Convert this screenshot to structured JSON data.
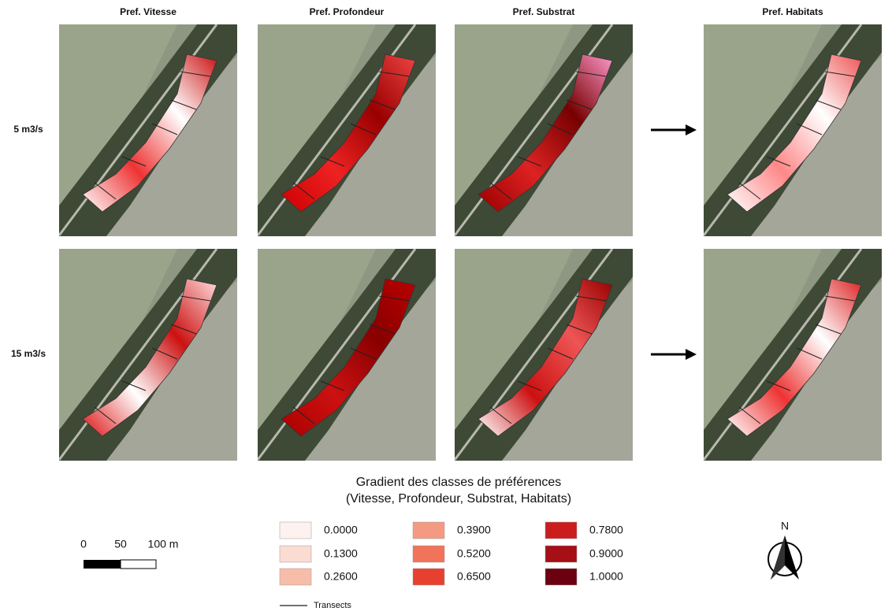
{
  "columns": [
    "Pref. Vitesse",
    "Pref. Profondeur",
    "Pref. Substrat",
    "Pref. Habitats"
  ],
  "rows": [
    "5 m3/s",
    "15 m3/s"
  ],
  "legend": {
    "title": [
      "Gradient des classes de préférences",
      "(Vitesse, Profondeur, Substrat, Habitats)"
    ],
    "items": [
      {
        "label": "0.0000",
        "color": "#fdf2ef"
      },
      {
        "label": "0.1300",
        "color": "#fbdcd2"
      },
      {
        "label": "0.2600",
        "color": "#f8bda9"
      },
      {
        "label": "0.3900",
        "color": "#f59a82"
      },
      {
        "label": "0.5200",
        "color": "#f1735a"
      },
      {
        "label": "0.6500",
        "color": "#e8402f"
      },
      {
        "label": "0.7800",
        "color": "#cc1d1d"
      },
      {
        "label": "0.9000",
        "color": "#a50f15"
      },
      {
        "label": "1.0000",
        "color": "#6b0010"
      }
    ],
    "transects": "Transects"
  },
  "scale_bar": [
    "0",
    "50",
    "100 m"
  ],
  "north": "N"
}
